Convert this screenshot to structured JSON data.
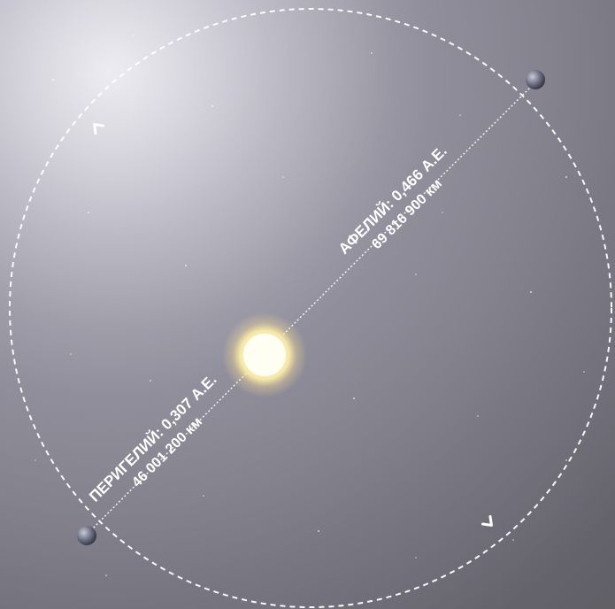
{
  "labels": {
    "aphelion_title": "АФЕЛИЙ: 0,466 А.Е.",
    "aphelion_km": "69 816 900 км",
    "perihelion_title": "ПЕРИГЕЛИЙ: 0,307 А.Е.",
    "perihelion_km": "46 001 200 км"
  },
  "colors": {
    "orbit": "#ffffff",
    "sun_core": "#fffbe6",
    "sun_glow": "#fff3b0",
    "planet": "#6b6d82"
  },
  "icons": {
    "upper_arrow": "chevron-arrow-icon",
    "lower_arrow": "chevron-arrow-icon"
  }
}
